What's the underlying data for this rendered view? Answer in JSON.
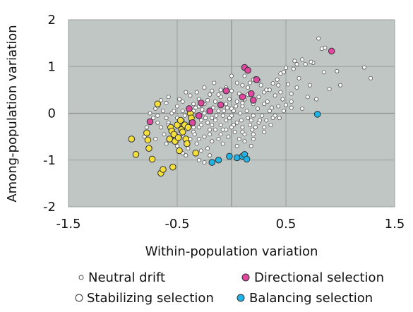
{
  "chart_data": {
    "type": "scatter",
    "xlabel": "Within-population variation",
    "ylabel": "Among-population variation",
    "xlim": [
      -1.5,
      1.5
    ],
    "ylim": [
      -2,
      2
    ],
    "x_ticks": [
      "-1.5",
      "-0.5",
      "0.5",
      "1.5"
    ],
    "x_tick_values": [
      -1.5,
      -0.5,
      0.5,
      1.5
    ],
    "y_ticks": [
      "2",
      "1",
      "0",
      "-1",
      "-2"
    ],
    "y_tick_values": [
      2,
      1,
      0,
      -1,
      -2
    ],
    "grid": true,
    "plot_background": "#c0c6c3",
    "legend_position": "bottom",
    "legend": [
      {
        "label": "Neutral drift",
        "series": "Neutral drift"
      },
      {
        "label": "Directional selection",
        "series": "Directional selection"
      },
      {
        "label": "Stabilizing selection",
        "series": "Stabilizing selection"
      },
      {
        "label": "Balancing selection",
        "series": "Balancing selection"
      }
    ],
    "series": [
      {
        "name": "Neutral drift",
        "color": "#ffffff",
        "marker": "small-circle",
        "points": [
          [
            0.8,
            1.6
          ],
          [
            0.83,
            1.38
          ],
          [
            0.86,
            1.4
          ],
          [
            1.22,
            0.98
          ],
          [
            1.28,
            0.75
          ],
          [
            0.97,
            0.9
          ],
          [
            0.85,
            0.88
          ],
          [
            0.75,
            1.08
          ],
          [
            0.73,
            1.1
          ],
          [
            0.65,
            1.15
          ],
          [
            0.6,
            1.05
          ],
          [
            0.57,
            0.95
          ],
          [
            0.5,
            0.97
          ],
          [
            0.48,
            0.88
          ],
          [
            0.45,
            0.85
          ],
          [
            0.42,
            0.72
          ],
          [
            0.38,
            0.64
          ],
          [
            0.35,
            0.5
          ],
          [
            0.3,
            0.45
          ],
          [
            0.25,
            0.7
          ],
          [
            0.22,
            0.75
          ],
          [
            0.2,
            0.72
          ],
          [
            0.17,
            0.65
          ],
          [
            0.15,
            0.55
          ],
          [
            0.3,
            0.2
          ],
          [
            0.35,
            0.05
          ],
          [
            0.43,
            0.15
          ],
          [
            0.5,
            0.18
          ],
          [
            0.55,
            0.12
          ],
          [
            0.6,
            0.55
          ],
          [
            0.52,
            0.62
          ],
          [
            0.47,
            0.3
          ],
          [
            0.7,
            0.35
          ],
          [
            0.9,
            0.52
          ],
          [
            0.4,
            -0.05
          ],
          [
            0.38,
            -0.1
          ],
          [
            0.3,
            -0.3
          ],
          [
            0.2,
            -0.45
          ],
          [
            0.25,
            -0.2
          ],
          [
            0.18,
            -0.15
          ],
          [
            0.1,
            0.15
          ],
          [
            0.05,
            0.25
          ],
          [
            0.0,
            0.1
          ],
          [
            -0.05,
            0.2
          ],
          [
            -0.1,
            0.35
          ],
          [
            -0.15,
            0.25
          ],
          [
            -0.2,
            0.4
          ],
          [
            -0.25,
            0.2
          ],
          [
            -0.3,
            0.15
          ],
          [
            -0.35,
            0.05
          ],
          [
            -0.4,
            0.1
          ],
          [
            -0.45,
            0.25
          ],
          [
            -0.5,
            0.15
          ],
          [
            -0.55,
            0.0
          ],
          [
            -0.6,
            -0.1
          ],
          [
            -0.65,
            -0.3
          ],
          [
            -0.7,
            -0.55
          ],
          [
            -0.5,
            -0.7
          ],
          [
            -0.45,
            -0.85
          ],
          [
            -0.4,
            -0.6
          ],
          [
            -0.35,
            -0.4
          ],
          [
            -0.3,
            -0.3
          ],
          [
            -0.25,
            -0.5
          ],
          [
            -0.2,
            -0.45
          ],
          [
            -0.15,
            -0.35
          ],
          [
            -0.1,
            -0.25
          ],
          [
            -0.05,
            -0.15
          ],
          [
            0.0,
            -0.05
          ],
          [
            0.05,
            -0.2
          ],
          [
            0.1,
            -0.3
          ],
          [
            0.15,
            -0.1
          ],
          [
            0.08,
            0.0
          ],
          [
            0.02,
            0.05
          ],
          [
            -0.02,
            -0.1
          ],
          [
            -0.08,
            -0.05
          ],
          [
            -0.12,
            0.05
          ],
          [
            -0.18,
            -0.1
          ],
          [
            -0.22,
            -0.2
          ],
          [
            -0.28,
            -0.15
          ],
          [
            -0.32,
            -0.05
          ],
          [
            -0.38,
            -0.2
          ],
          [
            -0.42,
            -0.35
          ],
          [
            -0.48,
            -0.45
          ],
          [
            -0.52,
            -0.3
          ],
          [
            -0.58,
            -0.2
          ],
          [
            -0.62,
            -0.45
          ],
          [
            -0.55,
            -0.55
          ],
          [
            -0.38,
            -0.55
          ],
          [
            -0.32,
            -0.65
          ],
          [
            -0.28,
            -0.8
          ],
          [
            -0.22,
            -0.75
          ],
          [
            -0.18,
            -0.6
          ],
          [
            -0.12,
            -0.55
          ],
          [
            -0.08,
            -0.65
          ],
          [
            -0.03,
            -0.5
          ],
          [
            0.03,
            -0.4
          ],
          [
            0.07,
            -0.55
          ],
          [
            0.12,
            -0.45
          ],
          [
            0.22,
            -0.3
          ],
          [
            0.28,
            -0.05
          ],
          [
            0.33,
            0.25
          ],
          [
            0.12,
            0.3
          ],
          [
            0.07,
            0.42
          ],
          [
            0.0,
            0.48
          ],
          [
            -0.05,
            0.55
          ],
          [
            -0.1,
            0.5
          ],
          [
            -0.18,
            0.48
          ],
          [
            -0.3,
            0.3
          ],
          [
            -0.38,
            0.38
          ],
          [
            -0.42,
            0.45
          ],
          [
            -0.48,
            0.3
          ],
          [
            -0.6,
            0.22
          ],
          [
            -0.65,
            0.28
          ],
          [
            -0.7,
            0.1
          ],
          [
            -0.75,
            0.0
          ],
          [
            -0.72,
            -0.1
          ],
          [
            -0.68,
            -0.2
          ],
          [
            -0.78,
            -0.3
          ],
          [
            -0.8,
            -0.5
          ],
          [
            -0.6,
            -0.65
          ],
          [
            -0.42,
            -0.9
          ],
          [
            -0.3,
            -1.0
          ],
          [
            -0.2,
            -0.9
          ],
          [
            -0.25,
            -1.05
          ],
          [
            0.05,
            0.65
          ],
          [
            0.1,
            0.6
          ],
          [
            0.0,
            0.8
          ],
          [
            0.12,
            0.8
          ],
          [
            0.27,
            0.6
          ],
          [
            0.32,
            0.5
          ],
          [
            0.4,
            0.38
          ],
          [
            0.45,
            0.45
          ],
          [
            0.55,
            0.42
          ],
          [
            0.43,
            0.6
          ],
          [
            0.62,
            0.75
          ],
          [
            0.68,
            1.05
          ],
          [
            0.58,
            1.12
          ],
          [
            0.55,
            0.25
          ],
          [
            0.65,
            0.1
          ],
          [
            0.48,
            0.05
          ],
          [
            0.44,
            -0.1
          ],
          [
            0.36,
            -0.25
          ],
          [
            0.3,
            -0.4
          ],
          [
            0.17,
            -0.25
          ],
          [
            0.12,
            -0.6
          ],
          [
            0.18,
            -0.7
          ],
          [
            0.05,
            -0.7
          ],
          [
            -0.05,
            -0.35
          ],
          [
            -0.15,
            -0.15
          ],
          [
            -0.25,
            0.0
          ],
          [
            -0.35,
            -0.3
          ],
          [
            -0.45,
            -0.15
          ],
          [
            -0.55,
            -0.4
          ],
          [
            -0.5,
            -0.1
          ],
          [
            -0.45,
            0.05
          ],
          [
            -0.35,
            0.2
          ],
          [
            -0.27,
            0.08
          ],
          [
            -0.17,
            0.12
          ],
          [
            -0.07,
            0.05
          ],
          [
            0.04,
            0.15
          ],
          [
            0.14,
            0.05
          ],
          [
            0.24,
            0.1
          ],
          [
            0.2,
            -0.05
          ],
          [
            0.15,
            0.4
          ],
          [
            -0.02,
            0.3
          ],
          [
            -0.12,
            0.4
          ],
          [
            -0.22,
            0.28
          ],
          [
            -0.33,
            0.12
          ],
          [
            -0.43,
            -0.05
          ],
          [
            -0.53,
            0.05
          ],
          [
            -0.63,
            0.05
          ],
          [
            -0.68,
            -0.05
          ],
          [
            -0.58,
            -0.25
          ],
          [
            -0.48,
            -0.25
          ],
          [
            -0.38,
            -0.1
          ],
          [
            -0.28,
            -0.25
          ],
          [
            -0.18,
            -0.25
          ],
          [
            -0.08,
            -0.35
          ],
          [
            0.02,
            -0.25
          ],
          [
            0.09,
            -0.15
          ],
          [
            0.19,
            -0.35
          ],
          [
            0.26,
            -0.15
          ],
          [
            0.32,
            -0.15
          ],
          [
            0.37,
            0.12
          ],
          [
            0.25,
            0.35
          ],
          [
            0.2,
            0.2
          ],
          [
            0.1,
            0.22
          ],
          [
            -0.04,
            0.12
          ],
          [
            -0.14,
            -0.05
          ],
          [
            -0.24,
            -0.1
          ],
          [
            -0.34,
            -0.45
          ],
          [
            -0.44,
            -0.5
          ],
          [
            -0.5,
            -0.6
          ],
          [
            -0.4,
            -0.75
          ],
          [
            -0.3,
            -0.55
          ],
          [
            -0.2,
            -0.35
          ],
          [
            -0.1,
            -0.45
          ],
          [
            0.0,
            -0.3
          ],
          [
            0.1,
            -0.4
          ],
          [
            0.2,
            -0.55
          ],
          [
            -0.16,
            0.65
          ],
          [
            -0.25,
            0.55
          ],
          [
            -0.32,
            0.45
          ],
          [
            -0.58,
            0.35
          ],
          [
            -0.68,
            0.15
          ],
          [
            0.72,
            0.6
          ],
          [
            0.78,
            0.3
          ],
          [
            1.0,
            0.6
          ]
        ]
      },
      {
        "name": "Stabilizing selection",
        "color": "#f5df3a",
        "marker": "circle",
        "points": [
          [
            -0.92,
            -0.55
          ],
          [
            -0.88,
            -0.88
          ],
          [
            -0.78,
            -0.42
          ],
          [
            -0.77,
            -0.57
          ],
          [
            -0.76,
            -0.75
          ],
          [
            -0.73,
            -0.98
          ],
          [
            -0.68,
            0.2
          ],
          [
            -0.65,
            -1.28
          ],
          [
            -0.63,
            -1.2
          ],
          [
            -0.57,
            -0.55
          ],
          [
            -0.56,
            -0.3
          ],
          [
            -0.55,
            -0.38
          ],
          [
            -0.53,
            -0.45
          ],
          [
            -0.52,
            -0.6
          ],
          [
            -0.5,
            -0.25
          ],
          [
            -0.49,
            -0.52
          ],
          [
            -0.48,
            -0.8
          ],
          [
            -0.46,
            -0.35
          ],
          [
            -0.45,
            -0.4
          ],
          [
            -0.43,
            -0.25
          ],
          [
            -0.42,
            -0.55
          ],
          [
            -0.41,
            -0.65
          ],
          [
            -0.4,
            -0.3
          ],
          [
            -0.38,
            0.0
          ],
          [
            -0.37,
            -0.1
          ],
          [
            -0.36,
            -0.2
          ],
          [
            -0.33,
            -0.85
          ],
          [
            -0.54,
            -1.15
          ],
          [
            -0.47,
            -0.15
          ]
        ]
      },
      {
        "name": "Directional selection",
        "color": "#e0479e",
        "marker": "circle",
        "points": [
          [
            -0.75,
            -0.18
          ],
          [
            -0.39,
            0.1
          ],
          [
            -0.36,
            -0.2
          ],
          [
            -0.3,
            -0.05
          ],
          [
            -0.28,
            0.22
          ],
          [
            -0.2,
            0.05
          ],
          [
            -0.1,
            0.18
          ],
          [
            -0.05,
            0.48
          ],
          [
            0.1,
            0.35
          ],
          [
            0.12,
            0.98
          ],
          [
            0.15,
            0.92
          ],
          [
            0.18,
            0.42
          ],
          [
            0.2,
            0.28
          ],
          [
            0.23,
            0.72
          ],
          [
            0.92,
            1.33
          ]
        ]
      },
      {
        "name": "Balancing selection",
        "color": "#1fb3e5",
        "marker": "circle",
        "points": [
          [
            -0.18,
            -1.05
          ],
          [
            -0.12,
            -1.0
          ],
          [
            -0.02,
            -0.92
          ],
          [
            0.05,
            -0.95
          ],
          [
            0.1,
            -0.92
          ],
          [
            0.12,
            -0.88
          ],
          [
            0.14,
            -0.98
          ],
          [
            0.79,
            -0.02
          ]
        ]
      }
    ]
  }
}
